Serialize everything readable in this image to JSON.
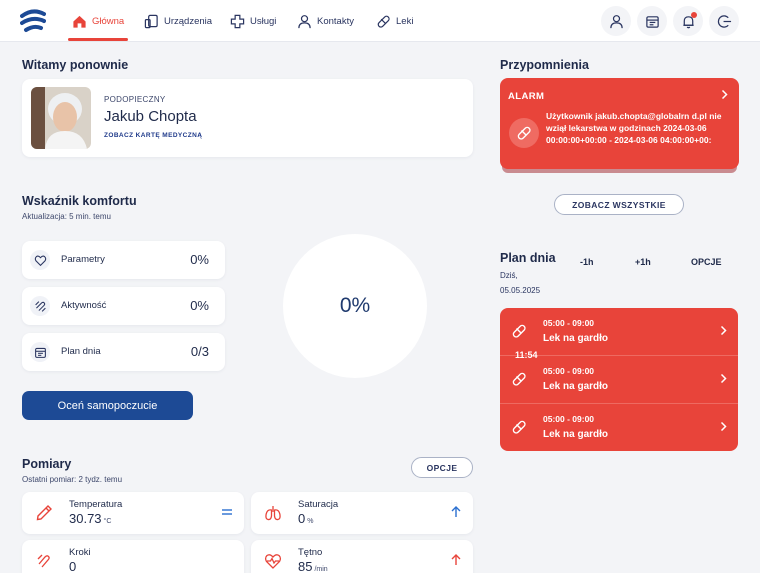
{
  "nav": {
    "items": [
      {
        "label": "Główna",
        "icon": "home-icon"
      },
      {
        "label": "Urządzenia",
        "icon": "devices-icon"
      },
      {
        "label": "Usługi",
        "icon": "plus-icon"
      },
      {
        "label": "Kontakty",
        "icon": "user-icon"
      },
      {
        "label": "Leki",
        "icon": "pill-icon"
      }
    ],
    "actions": [
      "profile-icon",
      "calendar-icon",
      "bell-icon",
      "logout-icon"
    ]
  },
  "welcome": {
    "title": "Witamy ponownie",
    "role": "PODOPIECZNY",
    "name": "Jakub Chopta",
    "link": "ZOBACZ KARTĘ MEDYCZNĄ"
  },
  "comfort": {
    "title": "Wskaźnik komfortu",
    "updated": "Aktualizacja: 5 min. temu",
    "rows": [
      {
        "label": "Parametry",
        "value": "0%",
        "icon": "heart-icon"
      },
      {
        "label": "Aktywność",
        "value": "0%",
        "icon": "activity-icon"
      },
      {
        "label": "Plan dnia",
        "value": "0/3",
        "icon": "calendar-icon"
      }
    ],
    "total": "0%",
    "rate_button": "Oceń samopoczucie"
  },
  "measurements": {
    "title": "Pomiary",
    "last": "Ostatni pomiar: 2 tydz. temu",
    "options": "OPCJE",
    "items": [
      {
        "label": "Temperatura",
        "value": "30.73",
        "unit": "°C",
        "icon": "thermometer-icon",
        "trend": "equal-icon"
      },
      {
        "label": "Saturacja",
        "value": "0",
        "unit": "%",
        "icon": "lungs-icon",
        "trend": "arrow-up-icon"
      },
      {
        "label": "Kroki",
        "value": "0",
        "unit": "",
        "icon": "steps-icon",
        "trend": ""
      },
      {
        "label": "Tętno",
        "value": "85",
        "unit": "/min",
        "icon": "pulse-icon",
        "trend": "arrow-up-icon"
      }
    ]
  },
  "reminders": {
    "title": "Przypomnienia",
    "alarm_label": "ALARM",
    "alarm_text": "Użytkownik jakub.chopta@globalrn d.pl nie wziął lekarstwa w godzinach 2024-03-06 00:00:00+00:00 - 2024-03-06 04:00:00+00:",
    "see_all": "ZOBACZ WSZYSTKIE"
  },
  "day_plan": {
    "title": "Plan dnia",
    "today": "Dziś,",
    "date": "05.05.2025",
    "minus": "-1h",
    "plus": "+1h",
    "options": "OPCJE",
    "now": "11:54",
    "items": [
      {
        "time": "05:00 - 09:00",
        "name": "Lek na gardło"
      },
      {
        "time": "05:00 - 09:00",
        "name": "Lek na gardło"
      },
      {
        "time": "05:00 - 09:00",
        "name": "Lek na gardło"
      }
    ]
  },
  "colors": {
    "accent": "#e8443a",
    "primary": "#1d4a95",
    "text": "#1f2a4a",
    "background": "#f3f4f7"
  }
}
